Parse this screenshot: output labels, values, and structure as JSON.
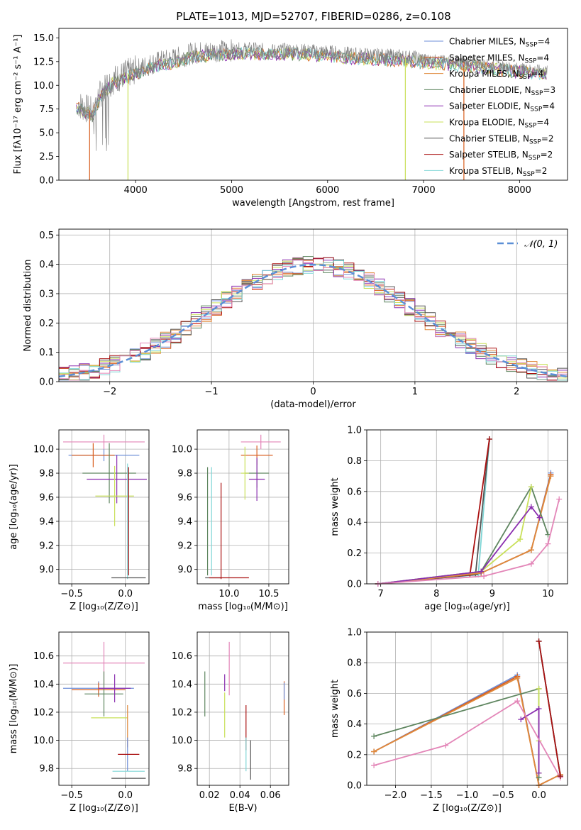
{
  "figure_title": "PLATE=1013, MJD=52707, FIBERID=0286, z=0.108",
  "colors": {
    "chabrier_miles": "#6f8fd8",
    "salpeter_miles": "#d95f1f",
    "kroupa_miles": "#e08a3c",
    "chabrier_elodie": "#5f8660",
    "salpeter_elodie": "#8b2fb0",
    "kroupa_elodie": "#c9e05a",
    "chabrier_stelib": "#555555",
    "salpeter_stelib": "#aa1111",
    "kroupa_stelib": "#7fd6d6",
    "pink": "#e386b8",
    "normal_curve": "#5b8fd6",
    "data_spectrum": "#7f7f7f",
    "grid": "#b0b0b0"
  },
  "chart_data": [
    {
      "id": "spectrum",
      "type": "line",
      "title": "PLATE=1013, MJD=52707, FIBERID=0286, z=0.108",
      "xlabel": "wavelength [Angstrom, rest frame]",
      "ylabel": "Flux [fλ10⁻¹⁷ erg cm⁻² s⁻¹ A⁻¹]",
      "xlim": [
        3200,
        8500
      ],
      "ylim": [
        0,
        16
      ],
      "xticks": [
        4000,
        5000,
        6000,
        7000,
        8000
      ],
      "yticks": [
        0.0,
        2.5,
        5.0,
        7.5,
        10.0,
        12.5,
        15.0
      ],
      "grid": false,
      "legend_position": "right",
      "legend": [
        {
          "label": "Chabrier MILES, N",
          "sub": "SSP",
          "suffix": "=4",
          "color_key": "chabrier_miles"
        },
        {
          "label": "Salpeter MILES, N",
          "sub": "SSP",
          "suffix": "=4",
          "color_key": "salpeter_miles"
        },
        {
          "label": "Kroupa MILES, N",
          "sub": "SSP",
          "suffix": "=4",
          "color_key": "kroupa_miles"
        },
        {
          "label": "Chabrier ELODIE, N",
          "sub": "SSP",
          "suffix": "=3",
          "color_key": "chabrier_elodie"
        },
        {
          "label": "Salpeter ELODIE, N",
          "sub": "SSP",
          "suffix": "=4",
          "color_key": "salpeter_elodie"
        },
        {
          "label": "Kroupa ELODIE, N",
          "sub": "SSP",
          "suffix": "=4",
          "color_key": "kroupa_elodie"
        },
        {
          "label": "Chabrier STELIB, N",
          "sub": "SSP",
          "suffix": "=2",
          "color_key": "chabrier_stelib"
        },
        {
          "label": "Salpeter STELIB, N",
          "sub": "SSP",
          "suffix": "=2",
          "color_key": "salpeter_stelib"
        },
        {
          "label": "Kroupa STELIB, N",
          "sub": "SSP",
          "suffix": "=2",
          "color_key": "kroupa_stelib"
        }
      ],
      "data_continuum": {
        "x": [
          3400,
          3550,
          3650,
          3750,
          3900,
          4000,
          4200,
          4400,
          4600,
          4800,
          5000,
          5200,
          5400,
          5600,
          5800,
          6000,
          6200,
          6400,
          6600,
          6800,
          7000,
          7200,
          7400,
          7600,
          7800,
          8000,
          8200,
          8290
        ],
        "y": [
          8.0,
          7.2,
          9.5,
          10.5,
          11.2,
          11.6,
          12.4,
          12.8,
          13.4,
          13.6,
          13.7,
          13.8,
          13.6,
          13.7,
          13.6,
          13.5,
          13.3,
          13.2,
          13.1,
          13.0,
          12.8,
          12.6,
          12.5,
          12.3,
          12.0,
          11.8,
          11.6,
          11.5
        ]
      },
      "model_drops": [
        {
          "x": 3520,
          "color_key": "salpeter_miles"
        },
        {
          "x": 3920,
          "color_key": "kroupa_elodie"
        },
        {
          "x": 6810,
          "color_key": "kroupa_elodie"
        },
        {
          "x": 7420,
          "color_key": "salpeter_miles"
        }
      ]
    },
    {
      "id": "residual_histogram",
      "type": "step",
      "xlabel": "(data-model)/error",
      "ylabel": "Normed distribution",
      "xlim": [
        -2.5,
        2.5
      ],
      "ylim": [
        0,
        0.52
      ],
      "xticks": [
        -2,
        -1,
        0,
        1,
        2
      ],
      "yticks": [
        0.0,
        0.1,
        0.2,
        0.3,
        0.4,
        0.5
      ],
      "grid": true,
      "legend_position": "top-right",
      "legend_label": "𝒩(0, 1)",
      "normal": {
        "mean": 0,
        "sigma": 1
      },
      "bin_width": 0.1
    },
    {
      "id": "age_vs_Z",
      "type": "errorbar",
      "xlabel": "Z [log₁₀(Z/Z⊙)]",
      "ylabel": "age  [log₁₀(age/yr)]",
      "xlim": [
        -0.62,
        0.22
      ],
      "ylim": [
        8.88,
        10.16
      ],
      "xticks": [
        -0.5,
        0.0
      ],
      "yticks": [
        9.0,
        9.2,
        9.4,
        9.6,
        9.8,
        10.0
      ],
      "grid": true,
      "points": [
        {
          "x": -0.2,
          "y": 10.06,
          "xerr": 0.38,
          "yerr": 0.06,
          "color_key": "pink"
        },
        {
          "x": -0.2,
          "y": 9.95,
          "xerr": 0.33,
          "yerr": 0.05,
          "color_key": "chabrier_miles"
        },
        {
          "x": -0.3,
          "y": 9.95,
          "xerr": 0.2,
          "yerr": 0.1,
          "color_key": "salpeter_miles"
        },
        {
          "x": -0.15,
          "y": 9.8,
          "xerr": 0.25,
          "yerr": 0.25,
          "color_key": "chabrier_elodie"
        },
        {
          "x": -0.08,
          "y": 9.75,
          "xerr": 0.28,
          "yerr": 0.2,
          "color_key": "salpeter_elodie"
        },
        {
          "x": -0.1,
          "y": 9.61,
          "xerr": 0.18,
          "yerr": 0.25,
          "color_key": "kroupa_elodie"
        },
        {
          "x": 0.02,
          "y": 9.4,
          "xerr": 0.0,
          "yerr": 0.48,
          "color_key": "kroupa_stelib"
        },
        {
          "x": 0.03,
          "y": 8.93,
          "xerr": 0.16,
          "yerr": 0.0,
          "color_key": "chabrier_stelib"
        },
        {
          "x": 0.03,
          "y": 9.4,
          "xerr": 0.0,
          "yerr": 0.45,
          "color_key": "salpeter_stelib"
        }
      ]
    },
    {
      "id": "age_vs_mass",
      "type": "errorbar",
      "xlabel": "mass [log₁₀(M/M⊙)]",
      "ylabel": "",
      "xlim": [
        9.6,
        10.75
      ],
      "ylim": [
        8.88,
        10.16
      ],
      "xticks": [
        10.0,
        10.5
      ],
      "yticks": [
        9.0,
        9.2,
        9.4,
        9.6,
        9.8,
        10.0
      ],
      "grid": true,
      "points": [
        {
          "x": 10.4,
          "y": 10.06,
          "xerr": 0.25,
          "yerr": 0.06,
          "color_key": "pink"
        },
        {
          "x": 10.35,
          "y": 9.95,
          "xerr": 0.2,
          "yerr": 0.08,
          "color_key": "salpeter_miles"
        },
        {
          "x": 10.35,
          "y": 9.8,
          "xerr": 0.15,
          "yerr": 0.12,
          "color_key": "chabrier_elodie"
        },
        {
          "x": 10.35,
          "y": 9.75,
          "xerr": 0.1,
          "yerr": 0.18,
          "color_key": "salpeter_elodie"
        },
        {
          "x": 10.2,
          "y": 9.8,
          "xerr": 0.05,
          "yerr": 0.22,
          "color_key": "kroupa_elodie"
        },
        {
          "x": 9.8,
          "y": 8.93,
          "xerr": 0.1,
          "yerr": 0.0,
          "color_key": "chabrier_stelib"
        },
        {
          "x": 10.0,
          "y": 8.93,
          "xerr": 0.25,
          "yerr": 0.0,
          "color_key": "salpeter_stelib"
        },
        {
          "x": 9.9,
          "y": 9.32,
          "xerr": 0.0,
          "yerr": 0.4,
          "color_key": "salpeter_stelib"
        },
        {
          "x": 9.73,
          "y": 9.4,
          "xerr": 0.0,
          "yerr": 0.45,
          "color_key": "chabrier_elodie"
        },
        {
          "x": 9.78,
          "y": 9.4,
          "xerr": 0.0,
          "yerr": 0.45,
          "color_key": "kroupa_stelib"
        }
      ]
    },
    {
      "id": "mass_weight_vs_age",
      "type": "line",
      "xlabel": "age  [log₁₀(age/yr)]",
      "ylabel": "mass weight",
      "xlim": [
        6.75,
        10.35
      ],
      "ylim": [
        0,
        1
      ],
      "xticks": [
        7,
        8,
        9,
        10
      ],
      "yticks": [
        0.0,
        0.2,
        0.4,
        0.6,
        0.8,
        1.0
      ],
      "grid": true,
      "series": [
        {
          "color_key": "kroupa_stelib",
          "x": [
            6.95,
            8.75,
            8.95
          ],
          "y": [
            0.0,
            0.06,
            0.94
          ]
        },
        {
          "color_key": "chabrier_stelib",
          "x": [
            6.95,
            8.7,
            8.95
          ],
          "y": [
            0.0,
            0.06,
            0.94
          ]
        },
        {
          "color_key": "salpeter_stelib",
          "x": [
            6.95,
            8.6,
            8.95
          ],
          "y": [
            0.0,
            0.06,
            0.94
          ]
        },
        {
          "color_key": "chabrier_miles",
          "x": [
            6.95,
            8.8,
            9.7,
            10.05
          ],
          "y": [
            0.0,
            0.07,
            0.22,
            0.72
          ]
        },
        {
          "color_key": "salpeter_miles",
          "x": [
            6.95,
            8.8,
            9.7,
            10.05
          ],
          "y": [
            0.0,
            0.07,
            0.22,
            0.71
          ]
        },
        {
          "color_key": "kroupa_miles",
          "x": [
            6.95,
            8.8,
            9.7,
            10.05
          ],
          "y": [
            0.0,
            0.07,
            0.22,
            0.7
          ]
        },
        {
          "color_key": "chabrier_elodie",
          "x": [
            6.95,
            8.8,
            9.7,
            10.0
          ],
          "y": [
            0.0,
            0.08,
            0.63,
            0.32
          ]
        },
        {
          "color_key": "kroupa_elodie",
          "x": [
            6.95,
            8.8,
            9.5,
            9.7
          ],
          "y": [
            0.0,
            0.08,
            0.29,
            0.63
          ]
        },
        {
          "color_key": "salpeter_elodie",
          "x": [
            6.95,
            8.8,
            9.7,
            9.85
          ],
          "y": [
            0.0,
            0.08,
            0.5,
            0.43
          ]
        },
        {
          "color_key": "pink",
          "x": [
            6.95,
            8.85,
            9.7,
            10.0,
            10.2
          ],
          "y": [
            0.0,
            0.05,
            0.13,
            0.26,
            0.55
          ]
        }
      ]
    },
    {
      "id": "mass_vs_Z",
      "type": "errorbar",
      "xlabel": "Z [log₁₀(Z/Z⊙)]",
      "ylabel": "mass [log₁₀(M/M⊙)]",
      "xlim": [
        -0.62,
        0.22
      ],
      "ylim": [
        9.68,
        10.77
      ],
      "xticks": [
        -0.5,
        0.0
      ],
      "yticks": [
        9.8,
        10.0,
        10.2,
        10.4,
        10.6
      ],
      "grid": true,
      "points": [
        {
          "x": -0.2,
          "y": 10.55,
          "xerr": 0.38,
          "yerr": 0.15,
          "color_key": "pink"
        },
        {
          "x": -0.25,
          "y": 10.37,
          "xerr": 0.33,
          "yerr": 0.05,
          "color_key": "chabrier_miles"
        },
        {
          "x": -0.25,
          "y": 10.36,
          "xerr": 0.25,
          "yerr": 0.05,
          "color_key": "salpeter_miles"
        },
        {
          "x": -0.2,
          "y": 10.33,
          "xerr": 0.18,
          "yerr": 0.16,
          "color_key": "chabrier_elodie"
        },
        {
          "x": -0.1,
          "y": 10.37,
          "xerr": 0.15,
          "yerr": 0.1,
          "color_key": "salpeter_elodie"
        },
        {
          "x": -0.15,
          "y": 10.16,
          "xerr": 0.17,
          "yerr": 0.0,
          "color_key": "kroupa_elodie"
        },
        {
          "x": 0.02,
          "y": 10.1,
          "xerr": 0.0,
          "yerr": 0.15,
          "color_key": "kroupa_miles"
        },
        {
          "x": 0.02,
          "y": 9.9,
          "xerr": 0.0,
          "yerr": 0.12,
          "color_key": "chabrier_miles"
        },
        {
          "x": 0.03,
          "y": 9.78,
          "xerr": 0.15,
          "yerr": 0.0,
          "color_key": "kroupa_stelib"
        },
        {
          "x": 0.03,
          "y": 9.73,
          "xerr": 0.16,
          "yerr": 0.0,
          "color_key": "chabrier_stelib"
        },
        {
          "x": 0.03,
          "y": 9.9,
          "xerr": 0.1,
          "yerr": 0.0,
          "color_key": "salpeter_stelib"
        }
      ]
    },
    {
      "id": "mass_vs_ebv",
      "type": "errorbar",
      "xlabel": "E(B-V)",
      "ylabel": "",
      "xlim": [
        0.012,
        0.072
      ],
      "ylim": [
        9.68,
        10.77
      ],
      "xticks": [
        0.02,
        0.04,
        0.06
      ],
      "yticks": [
        9.8,
        10.0,
        10.2,
        10.4,
        10.6
      ],
      "grid": true,
      "points": [
        {
          "x": 0.017,
          "y": 10.33,
          "xerr": 0.0,
          "yerr": 0.16,
          "color_key": "chabrier_elodie"
        },
        {
          "x": 0.03,
          "y": 10.41,
          "xerr": 0.0,
          "yerr": 0.06,
          "color_key": "salpeter_elodie"
        },
        {
          "x": 0.03,
          "y": 10.18,
          "xerr": 0.0,
          "yerr": 0.16,
          "color_key": "kroupa_elodie"
        },
        {
          "x": 0.033,
          "y": 10.51,
          "xerr": 0.0,
          "yerr": 0.19,
          "color_key": "pink"
        },
        {
          "x": 0.044,
          "y": 10.09,
          "xerr": 0.0,
          "yerr": 0.16,
          "color_key": "salpeter_stelib"
        },
        {
          "x": 0.044,
          "y": 9.9,
          "xerr": 0.0,
          "yerr": 0.12,
          "color_key": "kroupa_stelib"
        },
        {
          "x": 0.047,
          "y": 9.86,
          "xerr": 0.0,
          "yerr": 0.14,
          "color_key": "chabrier_stelib"
        },
        {
          "x": 0.069,
          "y": 10.3,
          "xerr": 0.0,
          "yerr": 0.12,
          "color_key": "salpeter_miles"
        },
        {
          "x": 0.069,
          "y": 10.35,
          "xerr": 0.0,
          "yerr": 0.06,
          "color_key": "chabrier_miles"
        }
      ]
    },
    {
      "id": "mass_weight_vs_Z",
      "type": "line",
      "xlabel": "Z [log₁₀(Z/Z⊙)]",
      "ylabel": "mass weight",
      "xlim": [
        -2.4,
        0.4
      ],
      "ylim": [
        0,
        1
      ],
      "xticks": [
        -2.0,
        -1.5,
        -1.0,
        -0.5,
        0.0
      ],
      "yticks": [
        0.0,
        0.2,
        0.4,
        0.6,
        0.8,
        1.0
      ],
      "grid": true,
      "series": [
        {
          "color_key": "chabrier_miles",
          "x": [
            -2.3,
            -0.3,
            0.0,
            0.3
          ],
          "y": [
            0.22,
            0.72,
            0.0,
            0.07
          ]
        },
        {
          "color_key": "salpeter_miles",
          "x": [
            -2.3,
            -0.3,
            0.0,
            0.3
          ],
          "y": [
            0.22,
            0.71,
            0.0,
            0.07
          ]
        },
        {
          "color_key": "kroupa_miles",
          "x": [
            -2.3,
            -0.3,
            0.0,
            0.3
          ],
          "y": [
            0.22,
            0.7,
            0.0,
            0.07
          ]
        },
        {
          "color_key": "chabrier_elodie",
          "x": [
            -2.3,
            0.0,
            0.0
          ],
          "y": [
            0.32,
            0.63,
            0.05
          ]
        },
        {
          "color_key": "kroupa_elodie",
          "x": [
            0.0,
            0.0,
            0.0
          ],
          "y": [
            0.63,
            0.29,
            0.08
          ]
        },
        {
          "color_key": "salpeter_elodie",
          "x": [
            -0.25,
            0.0,
            0.0
          ],
          "y": [
            0.43,
            0.5,
            0.08
          ]
        },
        {
          "color_key": "pink",
          "x": [
            -2.3,
            -1.3,
            -0.3,
            0.3
          ],
          "y": [
            0.13,
            0.26,
            0.55,
            0.05
          ]
        },
        {
          "color_key": "kroupa_stelib",
          "x": [
            0.0,
            0.3
          ],
          "y": [
            0.94,
            0.06
          ]
        },
        {
          "color_key": "chabrier_stelib",
          "x": [
            0.0,
            0.3
          ],
          "y": [
            0.94,
            0.06
          ]
        },
        {
          "color_key": "salpeter_stelib",
          "x": [
            0.0,
            0.3
          ],
          "y": [
            0.94,
            0.06
          ]
        }
      ]
    }
  ]
}
